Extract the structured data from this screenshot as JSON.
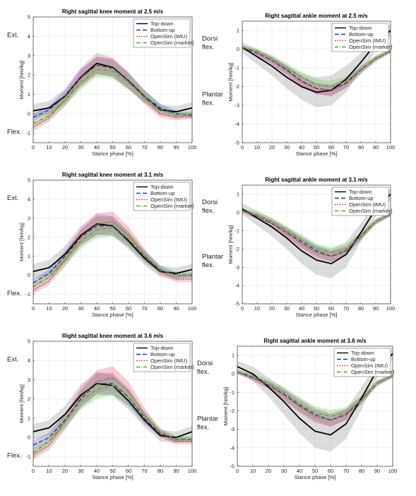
{
  "chart_data": [
    {
      "type": "line",
      "title": "Right sagittal knee moment at 2.5 m/s",
      "xlabel": "Stance phase [%]",
      "ylabel": "Moment [Nm/kg]",
      "upper_note": [
        "Ext."
      ],
      "lower_note": [
        "Flex."
      ],
      "xlim": [
        0,
        100
      ],
      "xticks": [
        0,
        10,
        20,
        30,
        40,
        50,
        60,
        70,
        80,
        90,
        100
      ],
      "ylim": [
        -1.5,
        5
      ],
      "yticks": [
        -1,
        0,
        1,
        2,
        3,
        4,
        5
      ],
      "grid": true,
      "legend": "upper right",
      "x": [
        0,
        10,
        20,
        30,
        40,
        50,
        60,
        70,
        80,
        90,
        100
      ],
      "series": [
        {
          "name": "Top-down",
          "color": "#000000",
          "band_color": "#9a9a9a",
          "dash": "solid",
          "values": [
            0.15,
            0.3,
            0.9,
            1.9,
            2.6,
            2.4,
            1.7,
            0.9,
            0.2,
            0.1,
            0.3
          ],
          "sd": [
            0.35,
            0.35,
            0.4,
            0.5,
            0.55,
            0.5,
            0.45,
            0.35,
            0.3,
            0.3,
            0.3
          ]
        },
        {
          "name": "Bottom-up",
          "color": "#1f3fa0",
          "band_color": "#7a5cc0",
          "dash": "dashed",
          "values": [
            -0.2,
            0.2,
            0.9,
            1.9,
            2.5,
            2.35,
            1.7,
            0.9,
            0.3,
            0,
            -0.1
          ],
          "sd": [
            0.2,
            0.2,
            0.3,
            0.4,
            0.45,
            0.45,
            0.4,
            0.3,
            0.2,
            0.15,
            0.15
          ]
        },
        {
          "name": "OpenSim (IMU)",
          "color": "#d62728",
          "band_color": "#e8708a",
          "dash": "dotted",
          "values": [
            -0.7,
            -0.2,
            0.7,
            1.8,
            2.5,
            2.4,
            1.7,
            0.8,
            0,
            -0.2,
            -0.1
          ],
          "sd": [
            0.2,
            0.2,
            0.3,
            0.4,
            0.45,
            0.45,
            0.4,
            0.3,
            0.2,
            0.15,
            0.15
          ]
        },
        {
          "name": "OpenSim (marker)",
          "color": "#5aa02c",
          "band_color": "#7ccf6a",
          "dash": "dashdot",
          "values": [
            -0.5,
            -0.1,
            0.7,
            1.6,
            2.3,
            2.2,
            1.6,
            0.9,
            0.2,
            -0.1,
            0
          ],
          "sd": [
            0.2,
            0.2,
            0.3,
            0.35,
            0.4,
            0.4,
            0.35,
            0.3,
            0.2,
            0.15,
            0.15
          ]
        }
      ]
    },
    {
      "type": "line",
      "title": "Right sagittal ankle moment at 2.5 m/s",
      "xlabel": "Stance phase [%]",
      "ylabel": "Moment [Nm/kg]",
      "upper_note": [
        "Dorsi",
        "flex."
      ],
      "lower_note": [
        "Plantar",
        "flex."
      ],
      "xlim": [
        0,
        100
      ],
      "xticks": [
        0,
        10,
        20,
        30,
        40,
        50,
        60,
        70,
        80,
        90,
        100
      ],
      "ylim": [
        -5,
        1.5
      ],
      "yticks": [
        -5,
        -4,
        -3,
        -2,
        -1,
        0,
        1
      ],
      "grid": true,
      "legend": "upper right",
      "x": [
        0,
        10,
        20,
        30,
        40,
        50,
        60,
        70,
        80,
        90,
        100
      ],
      "series": [
        {
          "name": "Top-down",
          "color": "#000000",
          "band_color": "#9a9a9a",
          "dash": "solid",
          "values": [
            0.1,
            -0.4,
            -0.9,
            -1.5,
            -2,
            -2.3,
            -2.2,
            -1.6,
            -0.7,
            0.3,
            1.0
          ],
          "sd": [
            0.3,
            0.4,
            0.5,
            0.6,
            0.7,
            0.8,
            0.8,
            0.7,
            0.5,
            0.4,
            0.3
          ]
        },
        {
          "name": "Bottom-up",
          "color": "#1f3fa0",
          "band_color": "#7a5cc0",
          "dash": "dashed",
          "values": [
            0.1,
            -0.2,
            -0.6,
            -1.1,
            -1.7,
            -2.1,
            -2.2,
            -1.8,
            -1.1,
            -0.5,
            -0.1
          ],
          "sd": [
            0.1,
            0.15,
            0.2,
            0.25,
            0.3,
            0.3,
            0.3,
            0.25,
            0.2,
            0.15,
            0.1
          ]
        },
        {
          "name": "OpenSim (IMU)",
          "color": "#d62728",
          "band_color": "#e8708a",
          "dash": "dotted",
          "values": [
            0.1,
            -0.2,
            -0.6,
            -1.15,
            -1.75,
            -2.1,
            -2.2,
            -1.85,
            -1.1,
            -0.5,
            -0.1
          ],
          "sd": [
            0.1,
            0.15,
            0.2,
            0.25,
            0.3,
            0.3,
            0.3,
            0.25,
            0.2,
            0.15,
            0.1
          ]
        },
        {
          "name": "OpenSim (marker)",
          "color": "#5aa02c",
          "band_color": "#7ccf6a",
          "dash": "dashdot",
          "values": [
            0.1,
            -0.1,
            -0.5,
            -1,
            -1.5,
            -1.9,
            -2,
            -1.7,
            -1.1,
            -0.5,
            -0.1
          ],
          "sd": [
            0.1,
            0.15,
            0.2,
            0.25,
            0.3,
            0.3,
            0.3,
            0.25,
            0.2,
            0.15,
            0.1
          ]
        }
      ]
    },
    {
      "type": "line",
      "title": "Right sagittal knee moment at 3.1 m/s",
      "xlabel": "Stance phase [%]",
      "ylabel": "Moment [Nm/kg]",
      "upper_note": [
        "Ext."
      ],
      "lower_note": [
        "Flex."
      ],
      "xlim": [
        0,
        100
      ],
      "xticks": [
        0,
        10,
        20,
        30,
        40,
        50,
        60,
        70,
        80,
        90,
        100
      ],
      "ylim": [
        -1.5,
        5
      ],
      "yticks": [
        -1,
        0,
        1,
        2,
        3,
        4,
        5
      ],
      "grid": true,
      "legend": "upper right",
      "x": [
        0,
        10,
        20,
        30,
        40,
        50,
        60,
        70,
        80,
        90,
        100
      ],
      "series": [
        {
          "name": "Top-down",
          "color": "#000000",
          "band_color": "#9a9a9a",
          "dash": "solid",
          "values": [
            0.2,
            0.4,
            1.1,
            2.1,
            2.7,
            2.6,
            1.8,
            0.9,
            0.2,
            0.1,
            0.3
          ],
          "sd": [
            0.4,
            0.4,
            0.45,
            0.5,
            0.55,
            0.5,
            0.45,
            0.35,
            0.3,
            0.3,
            0.3
          ]
        },
        {
          "name": "Bottom-up",
          "color": "#1f3fa0",
          "band_color": "#7a5cc0",
          "dash": "dashed",
          "values": [
            -0.4,
            0.1,
            1,
            2,
            2.6,
            2.6,
            1.9,
            1,
            0.3,
            0,
            0
          ],
          "sd": [
            0.2,
            0.2,
            0.3,
            0.4,
            0.5,
            0.5,
            0.4,
            0.3,
            0.2,
            0.15,
            0.15
          ]
        },
        {
          "name": "OpenSim (IMU)",
          "color": "#d62728",
          "band_color": "#e8708a",
          "dash": "dotted",
          "values": [
            -0.8,
            -0.3,
            0.8,
            2,
            2.7,
            2.8,
            2.1,
            1.1,
            0.2,
            -0.2,
            -0.2
          ],
          "sd": [
            0.2,
            0.2,
            0.35,
            0.45,
            0.55,
            0.55,
            0.45,
            0.3,
            0.2,
            0.15,
            0.15
          ]
        },
        {
          "name": "OpenSim (marker)",
          "color": "#5aa02c",
          "band_color": "#7ccf6a",
          "dash": "dashdot",
          "values": [
            -0.6,
            -0.1,
            0.8,
            1.8,
            2.4,
            2.5,
            1.9,
            1,
            0.3,
            0,
            0
          ],
          "sd": [
            0.2,
            0.2,
            0.3,
            0.4,
            0.45,
            0.45,
            0.4,
            0.3,
            0.2,
            0.15,
            0.15
          ]
        }
      ]
    },
    {
      "type": "line",
      "title": "Right sagittal ankle moment at 3.1 m/s",
      "xlabel": "Stance phase [%]",
      "ylabel": "Moment [Nm/kg]",
      "upper_note": [
        "Dorsi",
        "flex."
      ],
      "lower_note": [
        "Plantar",
        "flex."
      ],
      "xlim": [
        0,
        100
      ],
      "xticks": [
        0,
        10,
        20,
        30,
        40,
        50,
        60,
        70,
        80,
        90,
        100
      ],
      "ylim": [
        -5,
        1.5
      ],
      "yticks": [
        -5,
        -4,
        -3,
        -2,
        -1,
        0,
        1
      ],
      "grid": true,
      "legend": "upper right",
      "x": [
        0,
        10,
        20,
        30,
        40,
        50,
        60,
        70,
        80,
        90,
        100
      ],
      "series": [
        {
          "name": "Top-down",
          "color": "#000000",
          "band_color": "#9a9a9a",
          "dash": "solid",
          "values": [
            0.2,
            -0.3,
            -0.8,
            -1.4,
            -2.1,
            -2.6,
            -2.8,
            -2.3,
            -1.1,
            0.2,
            1.0
          ],
          "sd": [
            0.3,
            0.4,
            0.5,
            0.6,
            0.7,
            0.8,
            0.8,
            0.7,
            0.5,
            0.4,
            0.3
          ]
        },
        {
          "name": "Bottom-up",
          "color": "#1f3fa0",
          "band_color": "#7a5cc0",
          "dash": "dashed",
          "values": [
            0.1,
            -0.2,
            -0.6,
            -1.1,
            -1.6,
            -2.1,
            -2.4,
            -2.1,
            -1.3,
            -0.5,
            -0.1
          ],
          "sd": [
            0.1,
            0.15,
            0.2,
            0.25,
            0.3,
            0.3,
            0.3,
            0.25,
            0.2,
            0.15,
            0.1
          ]
        },
        {
          "name": "OpenSim (IMU)",
          "color": "#d62728",
          "band_color": "#e8708a",
          "dash": "dotted",
          "values": [
            0.1,
            -0.2,
            -0.6,
            -1.1,
            -1.7,
            -2.2,
            -2.4,
            -2.1,
            -1.3,
            -0.5,
            -0.1
          ],
          "sd": [
            0.1,
            0.15,
            0.2,
            0.25,
            0.3,
            0.3,
            0.3,
            0.25,
            0.2,
            0.15,
            0.1
          ]
        },
        {
          "name": "OpenSim (marker)",
          "color": "#5aa02c",
          "band_color": "#7ccf6a",
          "dash": "dashdot",
          "values": [
            0.1,
            -0.1,
            -0.5,
            -1,
            -1.5,
            -2,
            -2.2,
            -2,
            -1.3,
            -0.5,
            -0.1
          ],
          "sd": [
            0.1,
            0.15,
            0.2,
            0.25,
            0.3,
            0.3,
            0.3,
            0.25,
            0.2,
            0.15,
            0.1
          ]
        }
      ]
    },
    {
      "type": "line",
      "title": "Right sagittal knee moment at 3.6 m/s",
      "xlabel": "Stance phase [%]",
      "ylabel": "Moment [Nm/kg]",
      "upper_note": [
        "Ext."
      ],
      "lower_note": [
        "Flex."
      ],
      "xlim": [
        0,
        100
      ],
      "xticks": [
        0,
        10,
        20,
        30,
        40,
        50,
        60,
        70,
        80,
        90,
        100
      ],
      "ylim": [
        -1.5,
        5
      ],
      "yticks": [
        -1,
        0,
        1,
        2,
        3,
        4,
        5
      ],
      "grid": true,
      "legend": "upper right",
      "x": [
        0,
        10,
        20,
        30,
        40,
        50,
        60,
        70,
        80,
        90,
        100
      ],
      "series": [
        {
          "name": "Top-down",
          "color": "#000000",
          "band_color": "#9a9a9a",
          "dash": "solid",
          "values": [
            0.3,
            0.5,
            1.2,
            2.2,
            2.8,
            2.7,
            1.9,
            0.9,
            0.1,
            0,
            0.3
          ],
          "sd": [
            0.4,
            0.4,
            0.45,
            0.55,
            0.6,
            0.55,
            0.45,
            0.35,
            0.3,
            0.3,
            0.3
          ]
        },
        {
          "name": "Bottom-up",
          "color": "#1f3fa0",
          "band_color": "#7a5cc0",
          "dash": "dashed",
          "values": [
            -0.4,
            0,
            0.9,
            2,
            2.8,
            2.8,
            2.1,
            1,
            0.2,
            -0.1,
            -0.1
          ],
          "sd": [
            0.25,
            0.25,
            0.35,
            0.45,
            0.55,
            0.55,
            0.45,
            0.3,
            0.2,
            0.15,
            0.15
          ]
        },
        {
          "name": "OpenSim (IMU)",
          "color": "#d62728",
          "band_color": "#e8708a",
          "dash": "dotted",
          "values": [
            -0.9,
            -0.4,
            0.8,
            2.1,
            2.9,
            3.1,
            2.4,
            1.2,
            0.2,
            -0.2,
            -0.2
          ],
          "sd": [
            0.25,
            0.25,
            0.4,
            0.5,
            0.6,
            0.6,
            0.5,
            0.35,
            0.2,
            0.15,
            0.15
          ]
        },
        {
          "name": "OpenSim (marker)",
          "color": "#5aa02c",
          "band_color": "#7ccf6a",
          "dash": "dashdot",
          "values": [
            -0.8,
            -0.2,
            0.8,
            1.9,
            2.5,
            2.7,
            2.1,
            1.1,
            0.3,
            -0.1,
            -0.1
          ],
          "sd": [
            0.25,
            0.25,
            0.35,
            0.45,
            0.5,
            0.5,
            0.45,
            0.3,
            0.2,
            0.15,
            0.15
          ]
        }
      ]
    },
    {
      "type": "line",
      "title": "Right sagittal ankle moment at 3.6 m/s",
      "xlabel": "Stance phase [%]",
      "ylabel": "Moment [Nm/kg]",
      "upper_note": [
        "Dorsi",
        "flex."
      ],
      "lower_note": [
        "Plantar",
        "flex."
      ],
      "xlim": [
        0,
        100
      ],
      "xticks": [
        0,
        10,
        20,
        30,
        40,
        50,
        60,
        70,
        80,
        90,
        100
      ],
      "ylim": [
        -5,
        1.5
      ],
      "yticks": [
        -5,
        -4,
        -3,
        -2,
        -1,
        0,
        1
      ],
      "grid": true,
      "legend": "upper right",
      "x": [
        0,
        10,
        20,
        30,
        40,
        50,
        60,
        70,
        80,
        90,
        100
      ],
      "series": [
        {
          "name": "Top-down",
          "color": "#000000",
          "band_color": "#9a9a9a",
          "dash": "solid",
          "values": [
            0.4,
            0,
            -0.7,
            -1.5,
            -2.4,
            -3.1,
            -3.3,
            -2.7,
            -1.3,
            0.2,
            1.1
          ],
          "sd": [
            0.3,
            0.4,
            0.5,
            0.7,
            0.8,
            0.9,
            0.9,
            0.8,
            0.6,
            0.4,
            0.3
          ]
        },
        {
          "name": "Bottom-up",
          "color": "#1f3fa0",
          "band_color": "#7a5cc0",
          "dash": "dashed",
          "values": [
            0.1,
            -0.2,
            -0.6,
            -1.1,
            -1.7,
            -2.2,
            -2.5,
            -2.2,
            -1.4,
            -0.5,
            -0.1
          ],
          "sd": [
            0.1,
            0.15,
            0.2,
            0.3,
            0.35,
            0.35,
            0.35,
            0.3,
            0.2,
            0.15,
            0.1
          ]
        },
        {
          "name": "OpenSim (IMU)",
          "color": "#d62728",
          "band_color": "#e8708a",
          "dash": "dotted",
          "values": [
            0.1,
            -0.2,
            -0.6,
            -1.15,
            -1.75,
            -2.3,
            -2.5,
            -2.2,
            -1.4,
            -0.5,
            -0.1
          ],
          "sd": [
            0.1,
            0.15,
            0.2,
            0.3,
            0.35,
            0.35,
            0.35,
            0.3,
            0.2,
            0.15,
            0.1
          ]
        },
        {
          "name": "OpenSim (marker)",
          "color": "#5aa02c",
          "band_color": "#7ccf6a",
          "dash": "dashdot",
          "values": [
            0.1,
            -0.1,
            -0.5,
            -1,
            -1.6,
            -2.1,
            -2.3,
            -2.1,
            -1.4,
            -0.5,
            -0.1
          ],
          "sd": [
            0.1,
            0.15,
            0.2,
            0.3,
            0.35,
            0.35,
            0.35,
            0.3,
            0.2,
            0.15,
            0.1
          ]
        }
      ]
    }
  ]
}
